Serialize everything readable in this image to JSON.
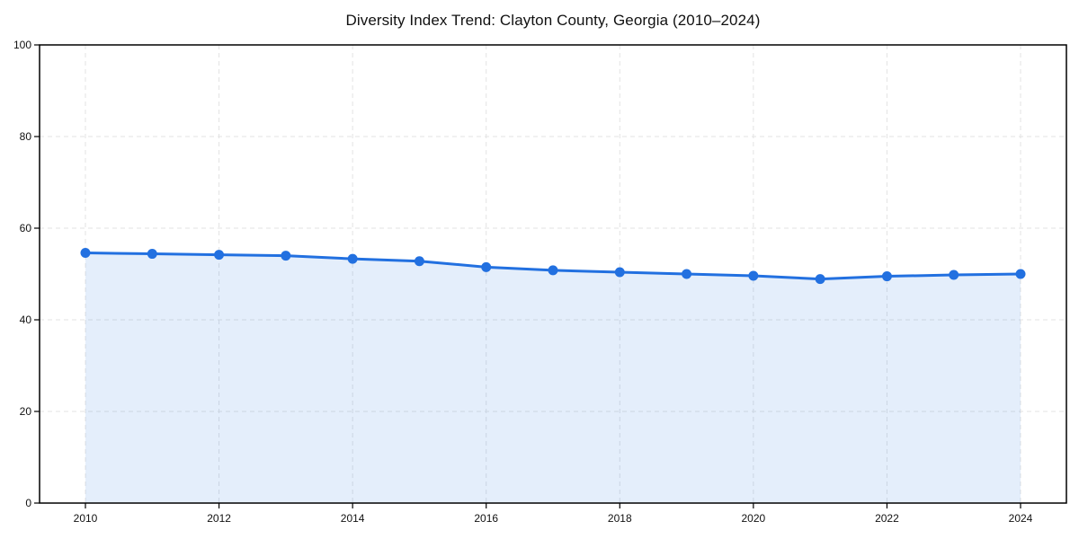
{
  "chart_data": {
    "type": "area",
    "title": "Diversity Index Trend: Clayton County, Georgia (2010–2024)",
    "x": [
      2010,
      2011,
      2012,
      2013,
      2014,
      2015,
      2016,
      2017,
      2018,
      2019,
      2020,
      2021,
      2022,
      2023,
      2024
    ],
    "values": [
      54.6,
      54.4,
      54.2,
      54.0,
      53.3,
      52.8,
      51.5,
      50.8,
      50.4,
      50.0,
      49.6,
      48.9,
      49.5,
      49.8,
      50.0
    ],
    "xlabel": "",
    "ylabel": "",
    "ylim": [
      0,
      100
    ],
    "xlim": [
      2010,
      2024
    ],
    "y_ticks": [
      "0",
      "20",
      "40",
      "60",
      "80",
      "100"
    ],
    "y_tick_values": [
      0,
      20,
      40,
      60,
      80,
      100
    ],
    "x_ticks": [
      "2010",
      "2012",
      "2014",
      "2016",
      "2018",
      "2020",
      "2022",
      "2024"
    ],
    "x_tick_values": [
      2010,
      2012,
      2014,
      2016,
      2018,
      2020,
      2022,
      2024
    ],
    "grid": true,
    "legend": "none",
    "colors": {
      "line": "#2270e0",
      "marker": "#2270e0",
      "fill": "rgba(34,112,224,0.12)",
      "gridline": "#e3e3e3",
      "axis_border": "#000000",
      "tick_label": "#111111"
    }
  }
}
